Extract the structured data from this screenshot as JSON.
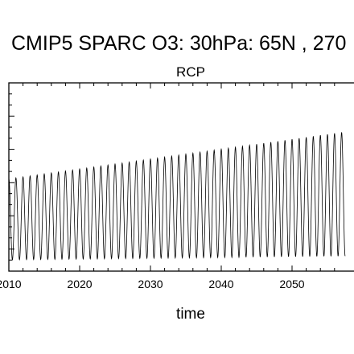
{
  "chart_data": {
    "type": "line",
    "title": "CMIP5 SPARC O3: 30hPa: 65N , 270",
    "subtitle": "RCP",
    "xlabel": "time",
    "ylabel": "",
    "xlim": [
      2010,
      2057.5
    ],
    "ylim": [
      0,
      1
    ],
    "x_ticks": [
      "2010",
      "2020",
      "2030",
      "2040",
      "2050"
    ],
    "x_tick_values": [
      2010,
      2020,
      2030,
      2040,
      2050
    ],
    "y_tick_labels_visible": false,
    "grid": false,
    "legend": "none",
    "line_color": "#000000",
    "series": [
      {
        "description_values": "seasonal cycle, one oscillation per year",
        "x_start": 2010,
        "x_end": 2057.5,
        "cycles_per_year": 1,
        "maximum_start": 0.49,
        "maximum_end": 0.74,
        "minimum_start": 0.06,
        "minimum_end": 0.08
      }
    ]
  }
}
